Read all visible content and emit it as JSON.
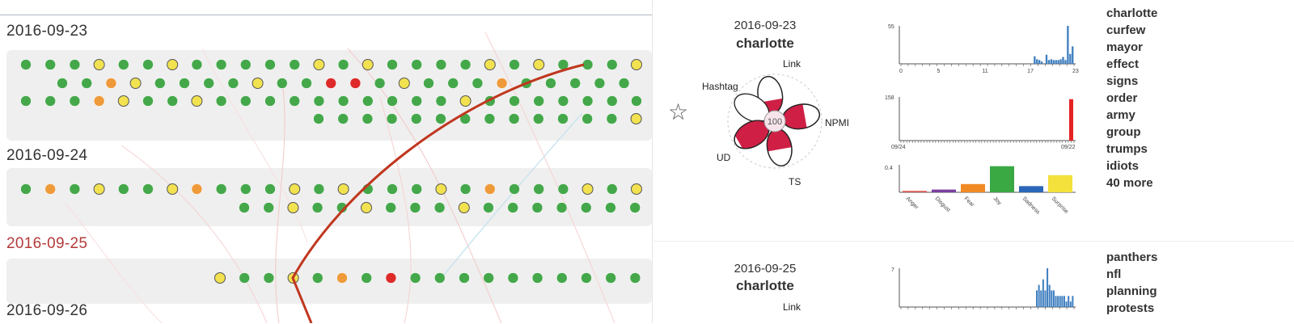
{
  "colors": {
    "green": "#44a84a",
    "light_green": "#7ccf6a",
    "yellow": "#f2e250",
    "orange": "#ef9a3a",
    "red": "#de2a2a",
    "trend_line": "#c0371f",
    "bar_blue": "#3f7fc0",
    "bar_red": "#e52222",
    "glyph_fill": "#cf1f45",
    "date_highlight": "#b33a3a"
  },
  "timeline": {
    "groups": [
      {
        "date": "2016-09-23",
        "highlight": false,
        "rows": [
          [
            "G",
            "G",
            "G",
            "Y",
            "G",
            "G",
            "Y",
            "G",
            "G",
            "G",
            "G",
            "G",
            "Y",
            "G",
            "Y",
            "G",
            "G",
            "G",
            "G",
            "Y",
            "G",
            "Y",
            "G",
            "G",
            "G",
            "Y"
          ],
          [
            "G",
            "G",
            "O",
            "Y",
            "G",
            "G",
            "G",
            "G",
            "Y",
            "G",
            "G",
            "R",
            "R",
            "G",
            "Y",
            "G",
            "G",
            "G",
            "O",
            "G",
            "G",
            "G",
            "G",
            "G",
            "G"
          ],
          [
            "G",
            "G",
            "G",
            "O",
            "Y",
            "G",
            "G",
            "Y",
            "G",
            "G",
            "G",
            "G",
            "G",
            "G",
            "G",
            "G",
            "G",
            "G",
            "Y",
            "G",
            "G",
            "G",
            "G",
            "G",
            "G",
            "G"
          ],
          [
            "G",
            "G",
            "G",
            "G",
            "G",
            "G",
            "G",
            "G",
            "G",
            "G",
            "G",
            "G",
            "G",
            "Y",
            "Y"
          ]
        ]
      },
      {
        "date": "2016-09-24",
        "highlight": false,
        "rows": [
          [
            "G",
            "O",
            "G",
            "Y",
            "G",
            "G",
            "Y",
            "O",
            "G",
            "G",
            "G",
            "Y",
            "G",
            "Y",
            "G",
            "G",
            "G",
            "Y",
            "G",
            "O",
            "G",
            "G",
            "G",
            "Y",
            "G",
            "Y"
          ],
          [
            "G",
            "G",
            "Y",
            "G",
            "G",
            "Y",
            "G",
            "G",
            "G",
            "Y",
            "G",
            "G",
            "G",
            "G",
            "G",
            "G",
            "G",
            "G"
          ]
        ]
      },
      {
        "date": "2016-09-25",
        "highlight": true,
        "rows": [
          [
            "Y",
            "G",
            "G",
            "Y",
            "G",
            "O",
            "G",
            "R",
            "G",
            "G",
            "G",
            "G",
            "G",
            "G",
            "G",
            "G",
            "G",
            "G"
          ]
        ]
      },
      {
        "date": "2016-09-26",
        "highlight": false,
        "rows": []
      }
    ]
  },
  "cards": [
    {
      "date": "2016-09-23",
      "keyword": "charlotte",
      "glyph": {
        "center_value": "100",
        "labels": {
          "link": "Link",
          "hashtag": "Hashtag",
          "npmi": "NPMI",
          "ud": "UD",
          "ts": "TS"
        },
        "petal_fill": {
          "link": 0.35,
          "hashtag": 0.0,
          "npmi": 0.6,
          "ud": 0.9,
          "ts": 0.55
        }
      },
      "hour_chart": {
        "y_max_label": "55",
        "x_ticks": [
          "0",
          "5",
          "11",
          "17",
          "23"
        ],
        "values": [
          0,
          0,
          0,
          0,
          0,
          0,
          0,
          0,
          0,
          0,
          0,
          0,
          0,
          0,
          0,
          0,
          0,
          0,
          0,
          0,
          0,
          0,
          0,
          0,
          0,
          0,
          0,
          0,
          0,
          0,
          0,
          0,
          0,
          0,
          0,
          0,
          0,
          0,
          0,
          0,
          0,
          0,
          0,
          0,
          0,
          0,
          0,
          0,
          0,
          0,
          0,
          0,
          0,
          0,
          0,
          0,
          10,
          6,
          5,
          3,
          0,
          12,
          5,
          6,
          5,
          5,
          5,
          6,
          9,
          5,
          50,
          13,
          23
        ]
      },
      "date_chart": {
        "y_max_label": "158",
        "x_ticks": [
          "09/24",
          "09/22"
        ],
        "spike_value": 150
      },
      "emotion_chart": {
        "y_max_label": "0.4",
        "categories": [
          "Anger",
          "Disgust",
          "Fear",
          "Joy",
          "Sadness",
          "Surprise"
        ],
        "values": [
          0.02,
          0.04,
          0.12,
          0.38,
          0.09,
          0.25
        ],
        "colors": [
          "#d9534f",
          "#7b3fa0",
          "#f08a24",
          "#3aa843",
          "#2b67b8",
          "#f4e13c"
        ]
      },
      "keywords": [
        "charlotte",
        "curfew",
        "mayor",
        "effect",
        "signs",
        "order",
        "army",
        "group",
        "trumps",
        "idiots",
        "40 more"
      ]
    },
    {
      "date": "2016-09-25",
      "keyword": "charlotte",
      "glyph": {
        "labels": {
          "link": "Link"
        }
      },
      "hour_chart": {
        "y_max_label": "7",
        "values": [
          0,
          0,
          0,
          0,
          0,
          0,
          0,
          0,
          0,
          0,
          0,
          0,
          0,
          0,
          0,
          0,
          0,
          0,
          0,
          0,
          0,
          0,
          0,
          0,
          0,
          0,
          0,
          0,
          0,
          0,
          0,
          0,
          0,
          0,
          0,
          0,
          0,
          0,
          0,
          0,
          0,
          0,
          0,
          0,
          0,
          0,
          0,
          0,
          0,
          0,
          0,
          0,
          0,
          0,
          0,
          0,
          0,
          0,
          0,
          0,
          0,
          0,
          0,
          0,
          3,
          4,
          3,
          5,
          3,
          7,
          4,
          3,
          3,
          2,
          2,
          2,
          2,
          2,
          1,
          2,
          1,
          2
        ]
      },
      "keywords": [
        "panthers",
        "nfl",
        "planning",
        "protests"
      ]
    }
  ]
}
